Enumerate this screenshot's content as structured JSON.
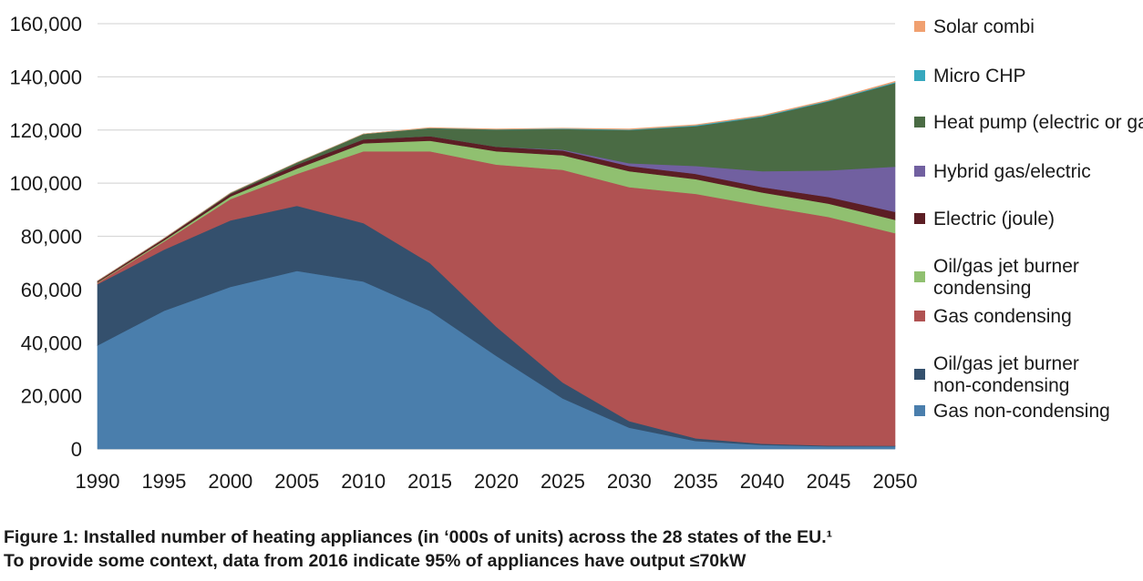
{
  "chart_data": {
    "type": "area",
    "stacked": true,
    "title": "",
    "xlabel": "",
    "ylabel": "",
    "xlim": [
      1990,
      2050
    ],
    "ylim": [
      0,
      160000
    ],
    "x_ticks": [
      "1990",
      "1995",
      "2000",
      "2005",
      "2010",
      "2015",
      "2020",
      "2025",
      "2030",
      "2035",
      "2040",
      "2045",
      "2050"
    ],
    "y_ticks": [
      "0",
      "20,000",
      "40,000",
      "60,000",
      "80,000",
      "100,000",
      "120,000",
      "140,000",
      "160,000"
    ],
    "grid": "horizontal",
    "legend_position": "right",
    "x": [
      1990,
      1995,
      2000,
      2005,
      2010,
      2015,
      2020,
      2025,
      2030,
      2035,
      2040,
      2045,
      2050
    ],
    "series": [
      {
        "name": "Gas non-condensing",
        "color": "#4a7eac",
        "values": [
          39000,
          52000,
          61000,
          67000,
          63000,
          52000,
          35000,
          19000,
          8000,
          3000,
          1500,
          1000,
          1000
        ]
      },
      {
        "name": "Oil/gas jet burner non-condensing",
        "color": "#34506d",
        "values": [
          23000,
          23000,
          25000,
          24500,
          22000,
          18000,
          11000,
          6000,
          2500,
          1000,
          500,
          300,
          200
        ]
      },
      {
        "name": "Gas condensing",
        "color": "#b05252",
        "values": [
          500,
          3000,
          8000,
          12000,
          27000,
          42000,
          61000,
          80000,
          88000,
          92000,
          89500,
          86000,
          80000
        ]
      },
      {
        "name": "Oil/gas jet burner condensing",
        "color": "#90c070",
        "values": [
          200,
          500,
          1000,
          2000,
          3000,
          4000,
          5000,
          5500,
          6000,
          5500,
          5000,
          5000,
          5000
        ]
      },
      {
        "name": "Electric (joule)",
        "color": "#5c1e24",
        "values": [
          500,
          700,
          1000,
          1500,
          1500,
          1700,
          1700,
          1800,
          2000,
          2000,
          2000,
          2500,
          3000
        ]
      },
      {
        "name": "Hybrid gas/electric",
        "color": "#7160a0",
        "values": [
          0,
          0,
          0,
          0,
          0,
          0,
          0,
          300,
          1000,
          3000,
          6000,
          10000,
          17000
        ]
      },
      {
        "name": "Heat pump (electric or gas)",
        "color": "#4a6b44",
        "values": [
          0,
          0,
          300,
          800,
          2000,
          3000,
          6500,
          7800,
          12500,
          15000,
          20500,
          26000,
          31500
        ]
      },
      {
        "name": "Micro CHP",
        "color": "#36a8be",
        "values": [
          0,
          0,
          0,
          0,
          0,
          100,
          100,
          200,
          200,
          300,
          300,
          300,
          300
        ]
      },
      {
        "name": "Solar combi",
        "color": "#f0a070",
        "values": [
          0,
          0,
          0,
          0,
          0,
          100,
          100,
          100,
          200,
          200,
          200,
          200,
          300
        ]
      }
    ],
    "legend_labels": [
      {
        "key": "Solar combi",
        "lines": [
          "Solar combi"
        ],
        "color": "#f0a070"
      },
      {
        "key": "Micro CHP",
        "lines": [
          "Micro CHP"
        ],
        "color": "#36a8be"
      },
      {
        "key": "Heat pump",
        "lines": [
          "Heat pump (electric or gas)"
        ],
        "color": "#4a6b44"
      },
      {
        "key": "Hybrid",
        "lines": [
          "Hybrid gas/electric"
        ],
        "color": "#7160a0"
      },
      {
        "key": "Electric",
        "lines": [
          "Electric (joule)"
        ],
        "color": "#5c1e24"
      },
      {
        "key": "Oil/gas condensing",
        "lines": [
          "Oil/gas jet burner",
          "condensing"
        ],
        "color": "#90c070"
      },
      {
        "key": "Gas condensing",
        "lines": [
          "Gas condensing"
        ],
        "color": "#b05252"
      },
      {
        "key": "Oil/gas non-condensing",
        "lines": [
          "Oil/gas jet burner",
          "non-condensing"
        ],
        "color": "#34506d"
      },
      {
        "key": "Gas non-condensing",
        "lines": [
          "Gas non-condensing"
        ],
        "color": "#4a7eac"
      }
    ]
  },
  "caption": {
    "line1": "Figure 1: Installed number of heating appliances (in ‘000s of units) across the 28 states of the EU.¹",
    "line2": "To provide some context, data from 2016 indicate 95% of appliances have output ≤70kW"
  }
}
